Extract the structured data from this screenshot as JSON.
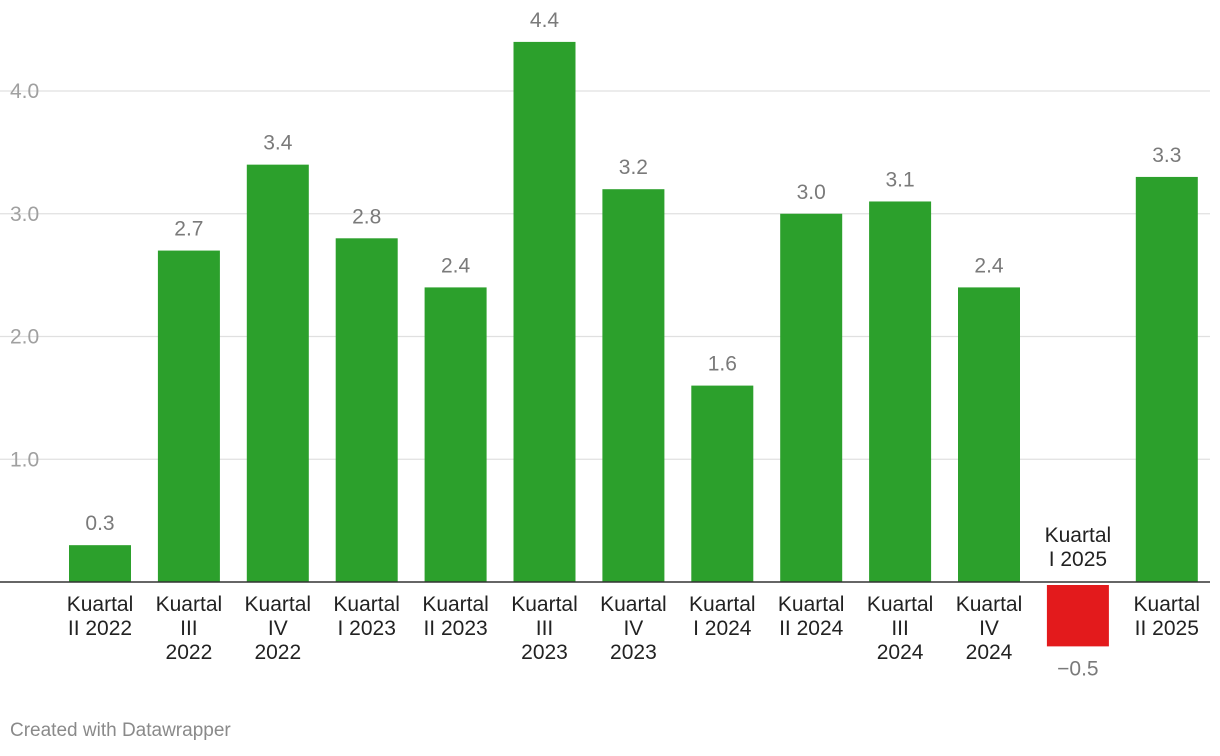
{
  "footer": {
    "credit": "Created with Datawrapper"
  },
  "colors": {
    "positive": "#2ca02c",
    "negative": "#e31a1c",
    "grid": "#e0e0e0",
    "baseline": "#333333",
    "tick_label": "#a0a0a0",
    "value_label": "#7a7a7a",
    "category_label": "#222222"
  },
  "chart_data": {
    "type": "bar",
    "categories": [
      [
        "Kuartal",
        "II 2022"
      ],
      [
        "Kuartal",
        "III",
        "2022"
      ],
      [
        "Kuartal",
        "IV",
        "2022"
      ],
      [
        "Kuartal",
        "I 2023"
      ],
      [
        "Kuartal",
        "II 2023"
      ],
      [
        "Kuartal",
        "III",
        "2023"
      ],
      [
        "Kuartal",
        "IV",
        "2023"
      ],
      [
        "Kuartal",
        "I 2024"
      ],
      [
        "Kuartal",
        "II 2024"
      ],
      [
        "Kuartal",
        "III",
        "2024"
      ],
      [
        "Kuartal",
        "IV",
        "2024"
      ],
      [
        "Kuartal",
        "I 2025"
      ],
      [
        "Kuartal",
        "II 2025"
      ]
    ],
    "values": [
      0.3,
      2.7,
      3.4,
      2.8,
      2.4,
      4.4,
      3.2,
      1.6,
      3.0,
      3.1,
      2.4,
      -0.5,
      3.3
    ],
    "value_labels": [
      "0.3",
      "2.7",
      "3.4",
      "2.8",
      "2.4",
      "4.4",
      "3.2",
      "1.6",
      "3.0",
      "3.1",
      "2.4",
      "−0.5",
      "3.3"
    ],
    "y_ticks": [
      1.0,
      2.0,
      3.0,
      4.0
    ],
    "y_tick_labels": [
      "1.0",
      "2.0",
      "3.0",
      "4.0"
    ],
    "ylim": [
      -0.5,
      4.4
    ],
    "grid": true,
    "title": "",
    "xlabel": "",
    "ylabel": ""
  }
}
